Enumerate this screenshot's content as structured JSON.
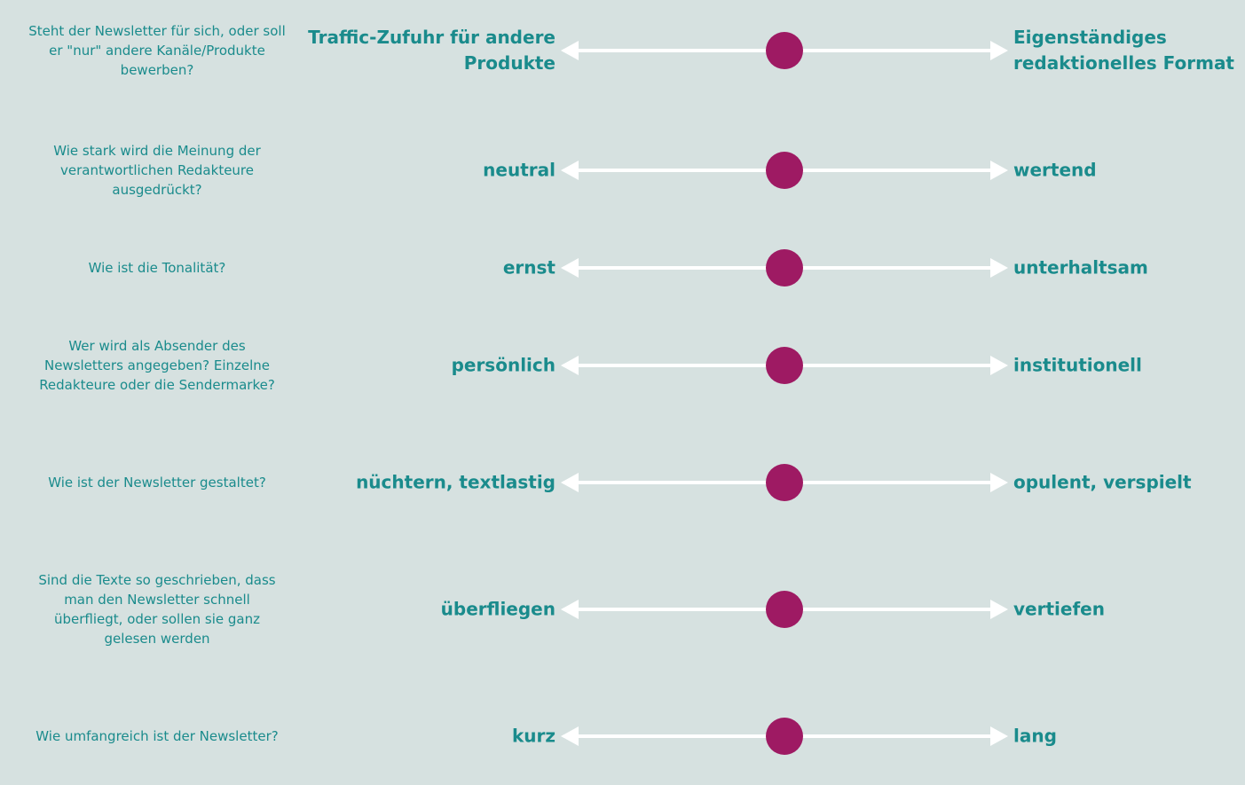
{
  "colors": {
    "background": "#d6e1e0",
    "text": "#1a8b8c",
    "marker": "#9e1a63",
    "arrow": "#ffffff"
  },
  "rows": [
    {
      "question": "Steht der Newsletter für sich, oder soll er \"nur\" andere Kanäle/Produkte bewerben?",
      "left": "Traffic-Zufuhr für andere\nProdukte",
      "right": "Eigenständiges\nredaktionelles Format",
      "value": 0.5
    },
    {
      "question": "Wie stark wird die Meinung der verantwortlichen Redakteure ausgedrückt?",
      "left": "neutral",
      "right": "wertend",
      "value": 0.5
    },
    {
      "question": "Wie ist die Tonalität?",
      "left": "ernst",
      "right": "unterhaltsam",
      "value": 0.5
    },
    {
      "question": "Wer wird als Absender des Newsletters angegeben? Einzelne Redakteure oder die Sendermarke?",
      "left": "persönlich",
      "right": "institutionell",
      "value": 0.5
    },
    {
      "question": "Wie ist der Newsletter gestaltet?",
      "left": "nüchtern, textlastig",
      "right": "opulent, verspielt",
      "value": 0.5
    },
    {
      "question": "Sind die Texte so geschrieben, dass man den Newsletter schnell überfliegt, oder sollen sie ganz gelesen werden",
      "left": "überfliegen",
      "right": "vertiefen",
      "value": 0.5
    },
    {
      "question": "Wie umfangreich ist der Newsletter?",
      "left": "kurz",
      "right": "lang",
      "value": 0.5
    }
  ]
}
